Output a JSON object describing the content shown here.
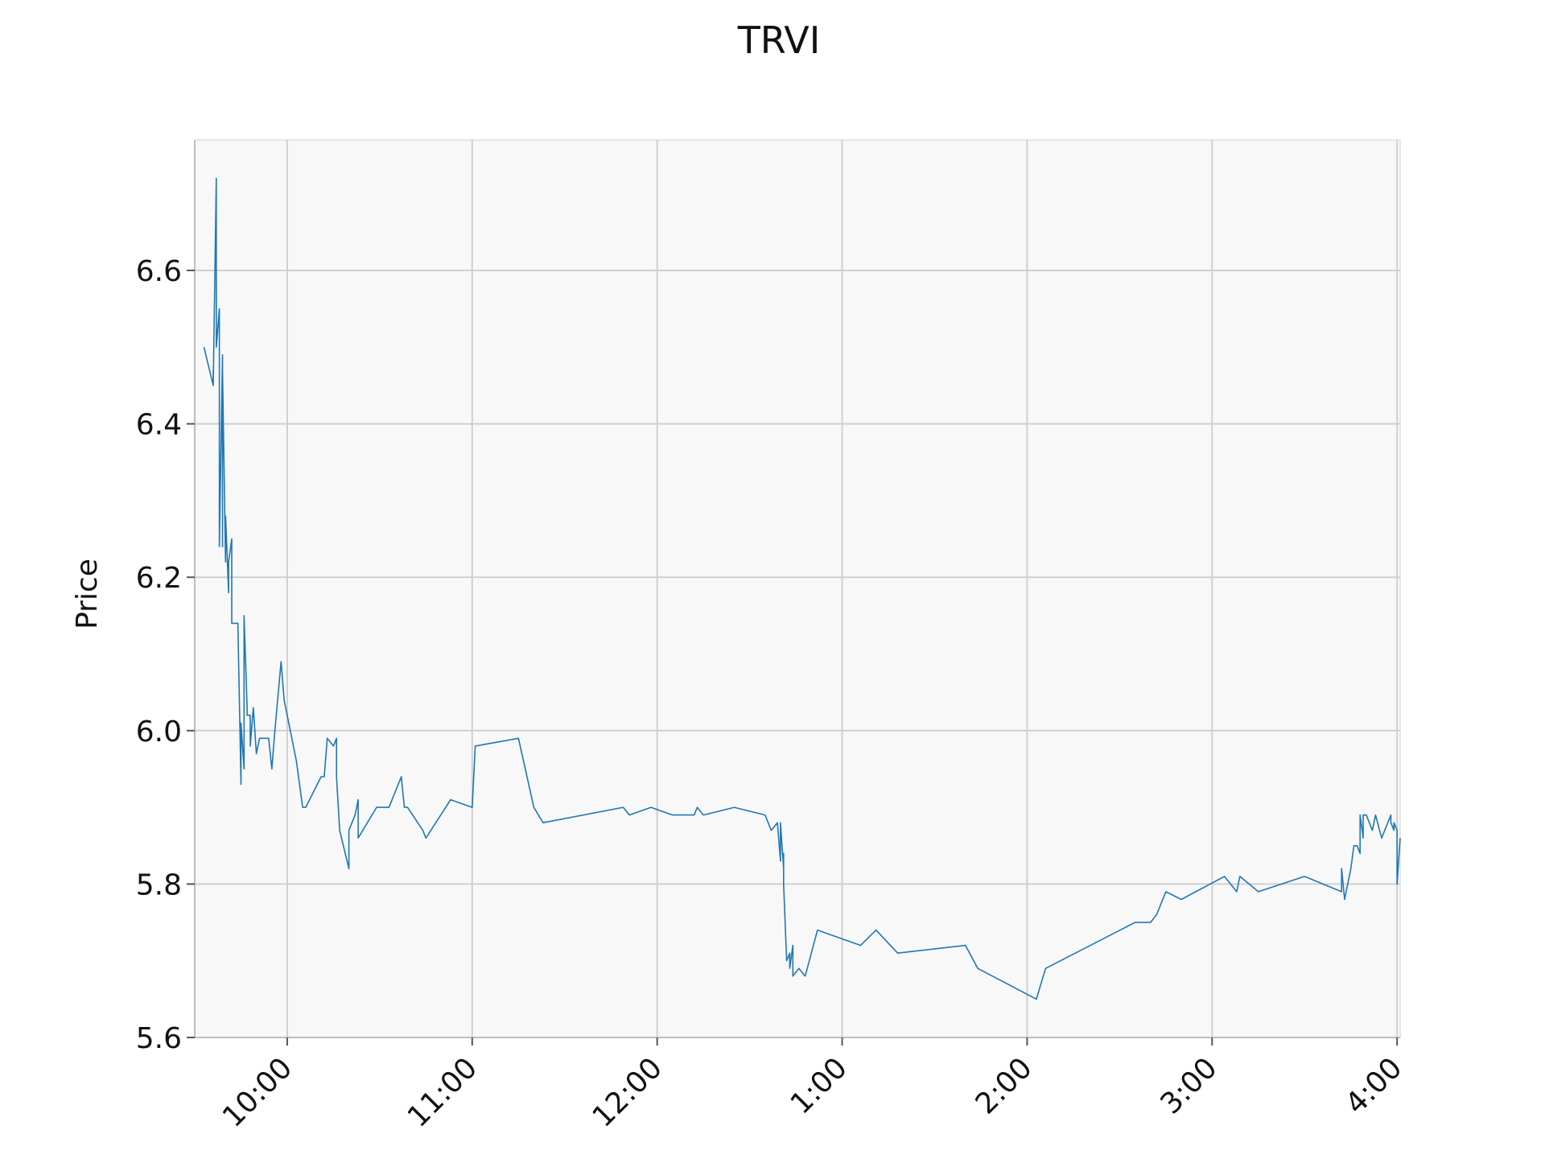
{
  "chart_data": {
    "type": "line",
    "title": "TRVI",
    "xlabel": "",
    "ylabel": "Price",
    "ylim": [
      5.6,
      6.77
    ],
    "xlim": [
      "9:30",
      "4:01"
    ],
    "grid": true,
    "x_tick_labels": [
      "10:00",
      "11:00",
      "12:00",
      "1:00",
      "2:00",
      "3:00",
      "4:00"
    ],
    "y_tick_labels": [
      "5.6",
      "5.8",
      "6.0",
      "6.2",
      "6.4",
      "6.6"
    ],
    "series": [
      {
        "color": "#1f77b4",
        "points": [
          [
            "9:33",
            6.5
          ],
          [
            "9:36",
            6.45
          ],
          [
            "9:36",
            6.47
          ],
          [
            "9:36",
            6.45
          ],
          [
            "9:37",
            6.72
          ],
          [
            "9:37",
            6.5
          ],
          [
            "9:38",
            6.55
          ],
          [
            "9:38",
            6.24
          ],
          [
            "9:39",
            6.49
          ],
          [
            "9:39",
            6.24
          ],
          [
            "9:39",
            6.47
          ],
          [
            "9:40",
            6.22
          ],
          [
            "9:40",
            6.28
          ],
          [
            "9:41",
            6.18
          ],
          [
            "9:41",
            6.22
          ],
          [
            "9:42",
            6.25
          ],
          [
            "9:42",
            6.14
          ],
          [
            "9:43",
            6.14
          ],
          [
            "9:44",
            6.14
          ],
          [
            "9:45",
            5.93
          ],
          [
            "9:45",
            6.01
          ],
          [
            "9:46",
            5.95
          ],
          [
            "9:46",
            6.15
          ],
          [
            "9:47",
            6.03
          ],
          [
            "9:47",
            6.02
          ],
          [
            "9:48",
            6.02
          ],
          [
            "9:48",
            5.98
          ],
          [
            "9:49",
            6.03
          ],
          [
            "9:50",
            5.97
          ],
          [
            "9:51",
            5.99
          ],
          [
            "9:54",
            5.99
          ],
          [
            "9:55",
            5.95
          ],
          [
            "9:56",
            6.0
          ],
          [
            "9:58",
            6.09
          ],
          [
            "9:59",
            6.04
          ],
          [
            "10:03",
            5.96
          ],
          [
            "10:05",
            5.9
          ],
          [
            "10:06",
            5.9
          ],
          [
            "10:11",
            5.94
          ],
          [
            "10:12",
            5.94
          ],
          [
            "10:13",
            5.99
          ],
          [
            "10:15",
            5.98
          ],
          [
            "10:16",
            5.99
          ],
          [
            "10:16",
            5.94
          ],
          [
            "10:17",
            5.87
          ],
          [
            "10:20",
            5.82
          ],
          [
            "10:20",
            5.82
          ],
          [
            "10:20",
            5.87
          ],
          [
            "10:22",
            5.89
          ],
          [
            "10:23",
            5.91
          ],
          [
            "10:23",
            5.86
          ],
          [
            "10:29",
            5.9
          ],
          [
            "10:33",
            5.9
          ],
          [
            "10:37",
            5.94
          ],
          [
            "10:38",
            5.9
          ],
          [
            "10:39",
            5.9
          ],
          [
            "10:44",
            5.87
          ],
          [
            "10:45",
            5.86
          ],
          [
            "10:53",
            5.91
          ],
          [
            "11:00",
            5.9
          ],
          [
            "11:01",
            5.98
          ],
          [
            "11:15",
            5.99
          ],
          [
            "11:20",
            5.9
          ],
          [
            "11:23",
            5.88
          ],
          [
            "11:49",
            5.9
          ],
          [
            "11:51",
            5.89
          ],
          [
            "11:58",
            5.9
          ],
          [
            "12:05",
            5.89
          ],
          [
            "12:12",
            5.89
          ],
          [
            "12:13",
            5.9
          ],
          [
            "12:15",
            5.89
          ],
          [
            "12:25",
            5.9
          ],
          [
            "12:35",
            5.89
          ],
          [
            "12:37",
            5.87
          ],
          [
            "12:39",
            5.88
          ],
          [
            "12:40",
            5.83
          ],
          [
            "12:40",
            5.88
          ],
          [
            "12:41",
            5.82
          ],
          [
            "12:41",
            5.84
          ],
          [
            "12:41",
            5.8
          ],
          [
            "12:42",
            5.7
          ],
          [
            "12:43",
            5.71
          ],
          [
            "12:43",
            5.69
          ],
          [
            "12:44",
            5.72
          ],
          [
            "12:44",
            5.68
          ],
          [
            "12:46",
            5.69
          ],
          [
            "12:48",
            5.68
          ],
          [
            "12:52",
            5.74
          ],
          [
            "1:06",
            5.72
          ],
          [
            "1:11",
            5.74
          ],
          [
            "1:18",
            5.71
          ],
          [
            "1:40",
            5.72
          ],
          [
            "1:44",
            5.69
          ],
          [
            "2:03",
            5.65
          ],
          [
            "2:06",
            5.69
          ],
          [
            "2:35",
            5.75
          ],
          [
            "2:40",
            5.75
          ],
          [
            "2:42",
            5.76
          ],
          [
            "2:45",
            5.79
          ],
          [
            "2:50",
            5.78
          ],
          [
            "3:04",
            5.81
          ],
          [
            "3:08",
            5.79
          ],
          [
            "3:09",
            5.81
          ],
          [
            "3:15",
            5.79
          ],
          [
            "3:30",
            5.81
          ],
          [
            "3:42",
            5.79
          ],
          [
            "3:42",
            5.82
          ],
          [
            "3:43",
            5.78
          ],
          [
            "3:45",
            5.82
          ],
          [
            "3:46",
            5.85
          ],
          [
            "3:47",
            5.85
          ],
          [
            "3:48",
            5.84
          ],
          [
            "3:48",
            5.89
          ],
          [
            "3:49",
            5.86
          ],
          [
            "3:49",
            5.89
          ],
          [
            "3:50",
            5.89
          ],
          [
            "3:52",
            5.87
          ],
          [
            "3:53",
            5.89
          ],
          [
            "3:55",
            5.86
          ],
          [
            "3:58",
            5.89
          ],
          [
            "3:58",
            5.88
          ],
          [
            "3:59",
            5.87
          ],
          [
            "3:59",
            5.88
          ],
          [
            "4:00",
            5.87
          ],
          [
            "4:00",
            5.8
          ],
          [
            "4:01",
            5.86
          ]
        ]
      }
    ]
  }
}
